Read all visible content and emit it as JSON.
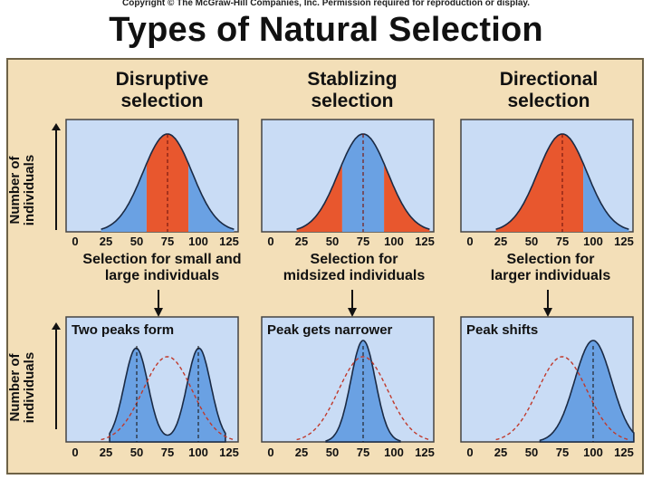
{
  "header": {
    "copyright": "Copyright © The McGraw-Hill Companies, Inc. Permission required for reproduction or display.",
    "title": "Types of Natural Selection"
  },
  "axis": {
    "ylabel_line1": "Number of",
    "ylabel_line2": "individuals",
    "ticks": [
      "0",
      "25",
      "50",
      "75",
      "100",
      "125"
    ]
  },
  "columns": [
    {
      "title_line1": "Disruptive",
      "title_line2": "selection",
      "caption_line1": "Selection for small and",
      "caption_line2": "large individuals",
      "result_label": "Two peaks form",
      "selected": "tails"
    },
    {
      "title_line1": "Stablizing",
      "title_line2": "selection",
      "caption_line1": "Selection for",
      "caption_line2": "midsized individuals",
      "result_label": "Peak gets narrower",
      "selected": "middle"
    },
    {
      "title_line1": "Directional",
      "title_line2": "selection",
      "caption_line1": "Selection for",
      "caption_line2": "larger individuals",
      "result_label": "Peak shifts",
      "selected": "upper"
    }
  ],
  "colors": {
    "panel_bg": "#f3dfb8",
    "plot_bg": "#c9dcf5",
    "favored": "#6aa1e3",
    "selected_against": "#e8572e",
    "curve": "#1a2a44",
    "original_dashed": "#c0392b"
  },
  "chart_data": {
    "type": "area",
    "x_range": [
      0,
      125
    ],
    "x_ticks": [
      0,
      25,
      50,
      75,
      100,
      125
    ],
    "original_distribution": {
      "mean": 75,
      "sd": 20
    },
    "results": {
      "disruptive": {
        "peaks": [
          50,
          100
        ],
        "label": "Two peaks form"
      },
      "stabilizing": {
        "peak": 75,
        "label": "Peak gets narrower"
      },
      "directional": {
        "peak": 100,
        "label": "Peak shifts"
      }
    }
  }
}
